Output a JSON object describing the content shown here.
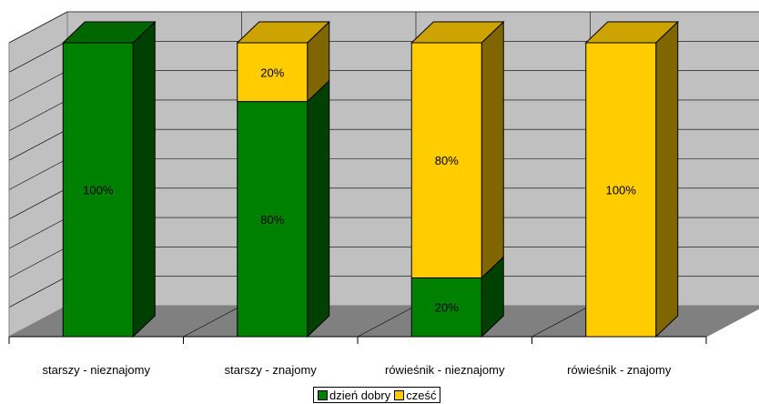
{
  "chart_data": {
    "type": "bar",
    "stacked": true,
    "percent_stacked": true,
    "three_d": true,
    "categories": [
      "starszy - nieznajomy",
      "starszy - znajomy",
      "rówieśnik - nieznajomy",
      "rówieśnik - znajomy"
    ],
    "series": [
      {
        "name": "dzień dobry",
        "values": [
          100,
          80,
          20,
          0
        ],
        "labels": [
          "100%",
          "80%",
          "20%",
          ""
        ],
        "color": "#008000"
      },
      {
        "name": "cześć",
        "values": [
          0,
          20,
          80,
          100
        ],
        "labels": [
          "",
          "20%",
          "80%",
          "100%"
        ],
        "color": "#ffcc00"
      }
    ],
    "ylim": [
      0,
      100
    ],
    "grid": true,
    "legend_position": "bottom"
  }
}
